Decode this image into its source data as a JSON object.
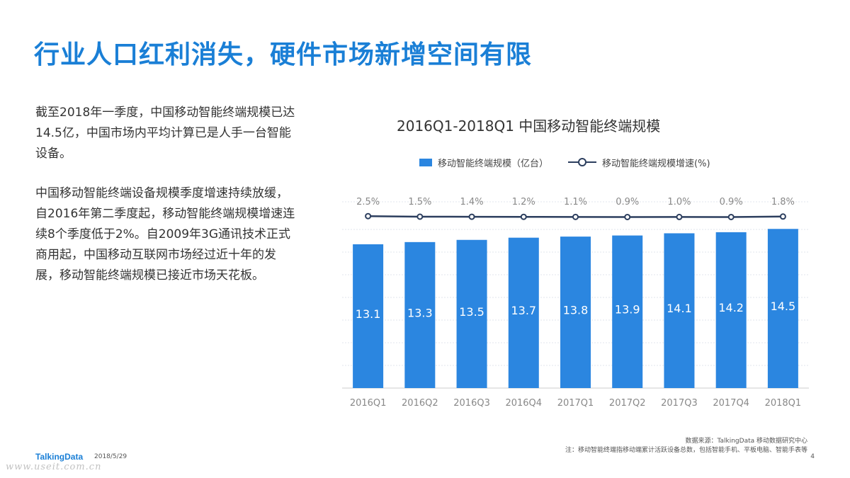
{
  "page": {
    "title": "行业人口红利消失，硬件市场新增空间有限",
    "paragraphs": [
      "截至2018年一季度，中国移动智能终端规模已达14.5亿，中国市场内平均计算已是人手一台智能设备。",
      "中国移动智能终端设备规模季度增速持续放缓，自2016年第二季度起，移动智能终端规模增速连续8个季度低于2%。自2009年3G通讯技术正式商用起，中国移动互联网市场经过近十年的发展，移动智能终端规模已接近市场天花板。"
    ],
    "source": "数据来源：TalkingData 移动数据研究中心",
    "note": "注：移动智能终端指移动端累计活跃设备总数，包括智能手机、平板电脑、智能手表等",
    "brand": "TalkingData",
    "date": "2018/5/29",
    "page_number": "4",
    "watermark": "www.useit.com.cn"
  },
  "colors": {
    "title": "#1a7fd6",
    "bar": "#2b86e0",
    "line": "#2c3e5e",
    "grid": "#e2e6ec",
    "axis_text": "#888888"
  },
  "chart_data": {
    "type": "bar",
    "title": "2016Q1-2018Q1 中国移动智能终端规模",
    "categories": [
      "2016Q1",
      "2016Q2",
      "2016Q3",
      "2016Q4",
      "2017Q1",
      "2017Q2",
      "2017Q3",
      "2017Q4",
      "2018Q1"
    ],
    "series": [
      {
        "name": "移动智能终端规模（亿台）",
        "type": "bar",
        "values": [
          13.1,
          13.3,
          13.5,
          13.7,
          13.8,
          13.9,
          14.1,
          14.2,
          14.5
        ],
        "labels": [
          "13.1",
          "13.3",
          "13.5",
          "13.7",
          "13.8",
          "13.9",
          "14.1",
          "14.2",
          "14.5"
        ]
      },
      {
        "name": "移动智能终端规模增速(%)",
        "type": "line",
        "values": [
          2.5,
          1.5,
          1.4,
          1.2,
          1.1,
          0.9,
          1.0,
          0.9,
          1.8
        ],
        "labels": [
          "2.5%",
          "1.5%",
          "1.4%",
          "1.2%",
          "1.1%",
          "0.9%",
          "1.0%",
          "0.9%",
          "1.8%"
        ]
      }
    ],
    "ylim": [
      0,
      16
    ],
    "grid": true,
    "legend": "top"
  }
}
